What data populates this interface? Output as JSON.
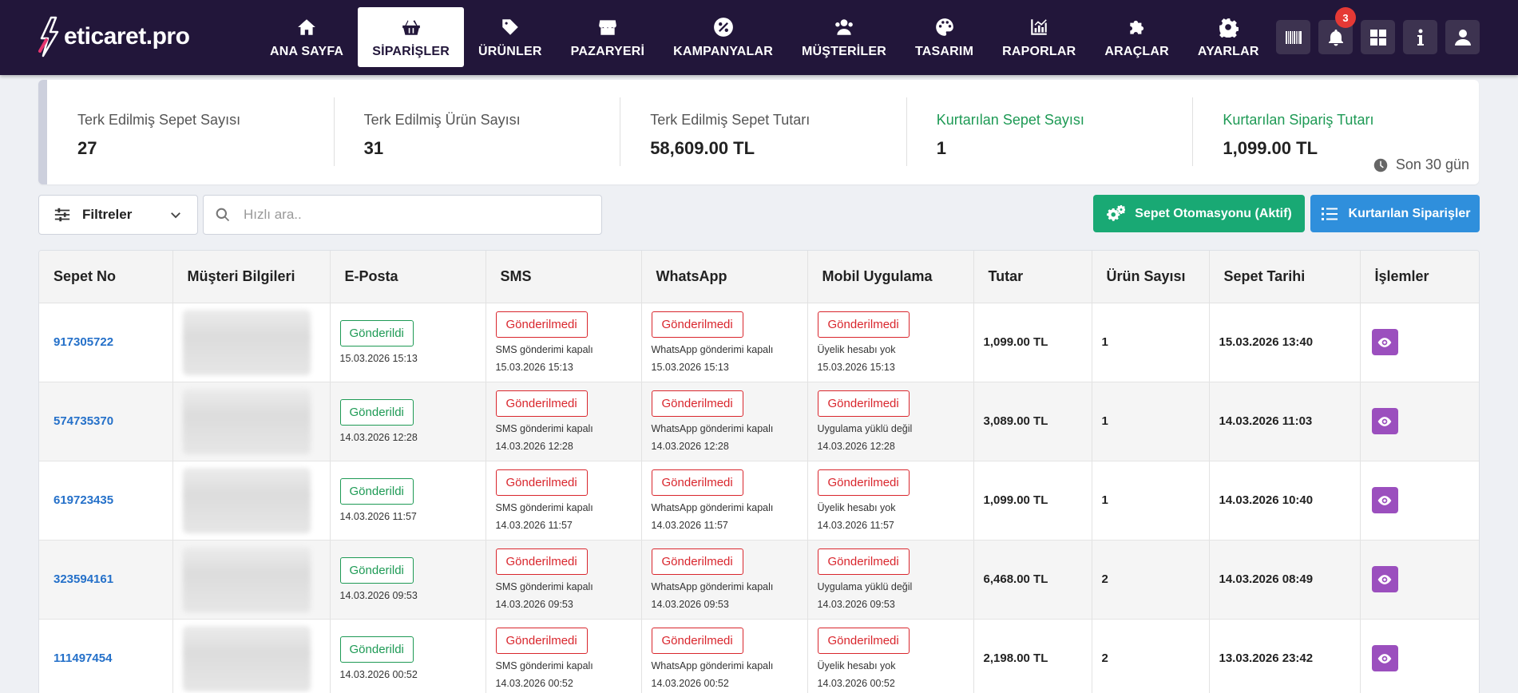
{
  "brand": {
    "name": "eticaret.pro"
  },
  "nav": [
    {
      "label": "ANA SAYFA",
      "icon": "home-icon",
      "active": false
    },
    {
      "label": "SİPARİŞLER",
      "icon": "basket-icon",
      "active": true
    },
    {
      "label": "ÜRÜNLER",
      "icon": "tag-icon",
      "active": false
    },
    {
      "label": "PAZARYERİ",
      "icon": "store-icon",
      "active": false
    },
    {
      "label": "KAMPANYALAR",
      "icon": "percent-icon",
      "active": false
    },
    {
      "label": "MÜŞTERİLER",
      "icon": "users-icon",
      "active": false
    },
    {
      "label": "TASARIM",
      "icon": "palette-icon",
      "active": false
    },
    {
      "label": "RAPORLAR",
      "icon": "chart-icon",
      "active": false
    },
    {
      "label": "ARAÇLAR",
      "icon": "puzzle-icon",
      "active": false
    },
    {
      "label": "AYARLAR",
      "icon": "gear-icon",
      "active": false
    }
  ],
  "top_actions": {
    "notification_count": "3"
  },
  "stats": [
    {
      "label": "Terk Edilmiş Sepet Sayısı",
      "value": "27",
      "green": false
    },
    {
      "label": "Terk Edilmiş Ürün Sayısı",
      "value": "31",
      "green": false
    },
    {
      "label": "Terk Edilmiş Sepet Tutarı",
      "value": "58,609.00 TL",
      "green": false
    },
    {
      "label": "Kurtarılan Sepet Sayısı",
      "value": "1",
      "green": true
    },
    {
      "label": "Kurtarılan Sipariş Tutarı",
      "value": "1,099.00 TL",
      "green": true
    }
  ],
  "period": "Son 30 gün",
  "toolbar": {
    "filter_label": "Filtreler",
    "search_placeholder": "Hızlı ara..",
    "automation_label": "Sepet Otomasyonu (Aktif)",
    "recovered_label": "Kurtarılan Siparişler"
  },
  "colors": {
    "topbar": "#22163a",
    "green": "#19a974",
    "blue": "#2f8fdc",
    "purple": "#9b4fbe",
    "sent": "#1e9a55",
    "not_sent": "#d9262d"
  },
  "table": {
    "headers": [
      "Sepet No",
      "Müşteri Bilgileri",
      "E-Posta",
      "SMS",
      "WhatsApp",
      "Mobil Uygulama",
      "Tutar",
      "Ürün Sayısı",
      "Sepet Tarihi",
      "İşlemler"
    ],
    "rows": [
      {
        "cart_no": "917305722",
        "email_status": "Gönderildi",
        "email_date": "15.03.2026 15:13",
        "sms_status": "Gönderilmedi",
        "sms_note": "SMS gönderimi kapalı",
        "sms_date": "15.03.2026 15:13",
        "wa_status": "Gönderilmedi",
        "wa_note": "WhatsApp gönderimi kapalı",
        "wa_date": "15.03.2026 15:13",
        "app_status": "Gönderilmedi",
        "app_note": "Üyelik hesabı yok",
        "app_date": "15.03.2026 15:13",
        "amount": "1,099.00 TL",
        "qty": "1",
        "date": "15.03.2026 13:40"
      },
      {
        "cart_no": "574735370",
        "email_status": "Gönderildi",
        "email_date": "14.03.2026 12:28",
        "sms_status": "Gönderilmedi",
        "sms_note": "SMS gönderimi kapalı",
        "sms_date": "14.03.2026 12:28",
        "wa_status": "Gönderilmedi",
        "wa_note": "WhatsApp gönderimi kapalı",
        "wa_date": "14.03.2026 12:28",
        "app_status": "Gönderilmedi",
        "app_note": "Uygulama yüklü değil",
        "app_date": "14.03.2026 12:28",
        "amount": "3,089.00 TL",
        "qty": "1",
        "date": "14.03.2026 11:03"
      },
      {
        "cart_no": "619723435",
        "email_status": "Gönderildi",
        "email_date": "14.03.2026 11:57",
        "sms_status": "Gönderilmedi",
        "sms_note": "SMS gönderimi kapalı",
        "sms_date": "14.03.2026 11:57",
        "wa_status": "Gönderilmedi",
        "wa_note": "WhatsApp gönderimi kapalı",
        "wa_date": "14.03.2026 11:57",
        "app_status": "Gönderilmedi",
        "app_note": "Üyelik hesabı yok",
        "app_date": "14.03.2026 11:57",
        "amount": "1,099.00 TL",
        "qty": "1",
        "date": "14.03.2026 10:40"
      },
      {
        "cart_no": "323594161",
        "email_status": "Gönderildi",
        "email_date": "14.03.2026 09:53",
        "sms_status": "Gönderilmedi",
        "sms_note": "SMS gönderimi kapalı",
        "sms_date": "14.03.2026 09:53",
        "wa_status": "Gönderilmedi",
        "wa_note": "WhatsApp gönderimi kapalı",
        "wa_date": "14.03.2026 09:53",
        "app_status": "Gönderilmedi",
        "app_note": "Uygulama yüklü değil",
        "app_date": "14.03.2026 09:53",
        "amount": "6,468.00 TL",
        "qty": "2",
        "date": "14.03.2026 08:49"
      },
      {
        "cart_no": "111497454",
        "email_status": "Gönderildi",
        "email_date": "14.03.2026 00:52",
        "sms_status": "Gönderilmedi",
        "sms_note": "SMS gönderimi kapalı",
        "sms_date": "14.03.2026 00:52",
        "wa_status": "Gönderilmedi",
        "wa_note": "WhatsApp gönderimi kapalı",
        "wa_date": "14.03.2026 00:52",
        "app_status": "Gönderilmedi",
        "app_note": "Üyelik hesabı yok",
        "app_date": "14.03.2026 00:52",
        "amount": "2,198.00 TL",
        "qty": "2",
        "date": "13.03.2026 23:42"
      }
    ]
  }
}
